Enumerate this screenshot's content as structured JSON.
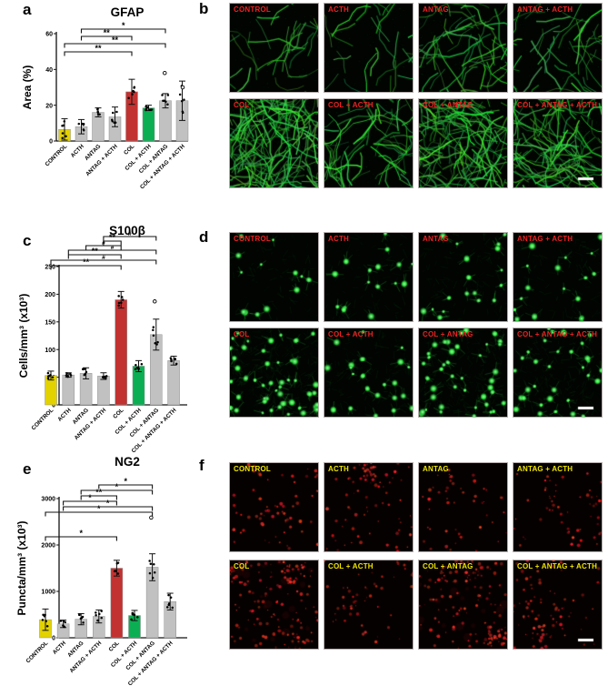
{
  "panel_letters": {
    "a": "a",
    "b": "b",
    "c": "c",
    "d": "d",
    "e": "e",
    "f": "f"
  },
  "colors": {
    "yellow": "#e3d200",
    "gray": "#c1c1c1",
    "red": "#c23231",
    "green": "#0cae54",
    "axis": "#111111",
    "micro_label_red": "#ee2123",
    "micro_label_yellow": "#efe600",
    "scalebar": "#ffffff"
  },
  "chart_data": [
    {
      "id": "a",
      "type": "bar",
      "title": "GFAP",
      "xlabel": "",
      "ylabel": "Area (%)",
      "ylim": [
        0,
        60
      ],
      "yticks": [
        0,
        20,
        40,
        60
      ],
      "grid": false,
      "categories": [
        "CONTROL",
        "ACTH",
        "ANTAG",
        "ANTAG + ACTH",
        "COL",
        "COL + ACTH",
        "COL + ANTAG",
        "COL + ANTAG + ACTH"
      ],
      "values": [
        6.5,
        8,
        16,
        13.5,
        27.5,
        18.5,
        22.5,
        22.5
      ],
      "errors": [
        6,
        4,
        2.5,
        5.5,
        7,
        1.5,
        4,
        11
      ],
      "bar_colors": [
        "yellow",
        "gray",
        "gray",
        "gray",
        "red",
        "green",
        "gray",
        "gray"
      ],
      "significance": [
        {
          "from": 0,
          "to": 4,
          "label": "**"
        },
        {
          "from": 0,
          "to": 6,
          "label": "**"
        },
        {
          "from": 1,
          "to": 4,
          "label": "**"
        },
        {
          "from": 1,
          "to": 6,
          "label": "*"
        }
      ],
      "outliers": [
        {
          "bar": 6,
          "value": 38
        },
        {
          "bar": 7,
          "value": 30
        }
      ]
    },
    {
      "id": "c",
      "type": "bar",
      "title": "S100β",
      "xlabel": "",
      "ylabel": "Cells/mm³ (x10³)",
      "ylim": [
        0,
        250
      ],
      "yticks": [
        0,
        50,
        100,
        150,
        200,
        250
      ],
      "grid": false,
      "categories": [
        "CONTROL",
        "ACTH",
        "ANTAG",
        "ANTAG + ACTH",
        "COL",
        "COL + ACTH",
        "COL + ANTAG",
        "COL + ANTAG + ACTH"
      ],
      "values": [
        53,
        54,
        57,
        52,
        190,
        70,
        127,
        80
      ],
      "errors": [
        8,
        4,
        10,
        6,
        15,
        10,
        28,
        8
      ],
      "bar_colors": [
        "yellow",
        "gray",
        "gray",
        "gray",
        "red",
        "green",
        "gray",
        "gray"
      ],
      "significance": [
        {
          "from": 0,
          "to": 4,
          "label": "**"
        },
        {
          "from": 0,
          "to": 6,
          "label": "#"
        },
        {
          "from": 1,
          "to": 4,
          "label": "**"
        },
        {
          "from": 1,
          "to": 6,
          "label": "#"
        },
        {
          "from": 2,
          "to": 4,
          "label": "#"
        },
        {
          "from": 3,
          "to": 4,
          "label": "**"
        },
        {
          "from": 3,
          "to": 6,
          "label": "#"
        }
      ],
      "outliers": [
        {
          "bar": 6,
          "value": 187
        }
      ]
    },
    {
      "id": "e",
      "type": "bar",
      "title": "NG2",
      "xlabel": "",
      "ylabel": "Puncta/mm³ (x10³)",
      "ylim": [
        0,
        3000
      ],
      "yticks": [
        0,
        1000,
        2000,
        3000
      ],
      "grid": false,
      "categories": [
        "CONTROL",
        "ACTH",
        "ANTAG",
        "ANTAG + ACTH",
        "COL",
        "COL + ACTH",
        "COL + ANTAG",
        "COL + ANTAG + ACTH"
      ],
      "values": [
        390,
        300,
        400,
        460,
        1500,
        480,
        1520,
        780
      ],
      "errors": [
        230,
        80,
        120,
        140,
        170,
        110,
        290,
        180
      ],
      "bar_colors": [
        "yellow",
        "gray",
        "gray",
        "gray",
        "red",
        "green",
        "gray",
        "gray"
      ],
      "significance": [
        {
          "from": 0,
          "to": 4,
          "label": "*"
        },
        {
          "from": 0,
          "to": 6,
          "label": "*"
        },
        {
          "from": 1,
          "to": 6,
          "label": "*"
        },
        {
          "from": 1,
          "to": 4,
          "label": "*"
        },
        {
          "from": 2,
          "to": 4,
          "label": "**"
        },
        {
          "from": 2,
          "to": 6,
          "label": "*"
        },
        {
          "from": 3,
          "to": 6,
          "label": "*"
        }
      ],
      "outliers": [
        {
          "bar": 6,
          "value": 2590
        }
      ]
    }
  ],
  "micrographs": [
    {
      "id": "b",
      "stain": "GFAP",
      "pattern": "fibers",
      "label_color": "#ee2123",
      "tiles": [
        {
          "label": "CONTROL",
          "density": 30
        },
        {
          "label": "ACTH",
          "density": 26
        },
        {
          "label": "ANTAG",
          "density": 60
        },
        {
          "label": "ANTAG + ACTH",
          "density": 40
        },
        {
          "label": "COL",
          "density": 160
        },
        {
          "label": "COL + ACTH",
          "density": 65
        },
        {
          "label": "COL + ANTAG",
          "density": 140
        },
        {
          "label": "COL + ANTAG + ACTH",
          "density": 120,
          "scalebar": true
        }
      ]
    },
    {
      "id": "d",
      "stain": "S100β",
      "pattern": "cells",
      "label_color": "#ee2123",
      "tiles": [
        {
          "label": "CONTROL",
          "density": 13
        },
        {
          "label": "ACTH",
          "density": 16
        },
        {
          "label": "ANTAG",
          "density": 18
        },
        {
          "label": "ANTAG + ACTH",
          "density": 17
        },
        {
          "label": "COL",
          "density": 48
        },
        {
          "label": "COL + ACTH",
          "density": 22
        },
        {
          "label": "COL + ANTAG",
          "density": 42
        },
        {
          "label": "COL + ANTAG + ACTH",
          "density": 32,
          "scalebar": true
        }
      ]
    },
    {
      "id": "f",
      "stain": "NG2",
      "pattern": "puncta",
      "label_color": "#efe600",
      "tiles": [
        {
          "label": "CONTROL",
          "density": 70
        },
        {
          "label": "ACTH",
          "density": 85
        },
        {
          "label": "ANTAG",
          "density": 50
        },
        {
          "label": "ANTAG + ACTH",
          "density": 60
        },
        {
          "label": "COL",
          "density": 170
        },
        {
          "label": "COL + ACTH",
          "density": 55
        },
        {
          "label": "COL + ANTAG",
          "density": 140
        },
        {
          "label": "COL + ANTAG + ACTH",
          "density": 95,
          "scalebar": true
        }
      ]
    }
  ]
}
